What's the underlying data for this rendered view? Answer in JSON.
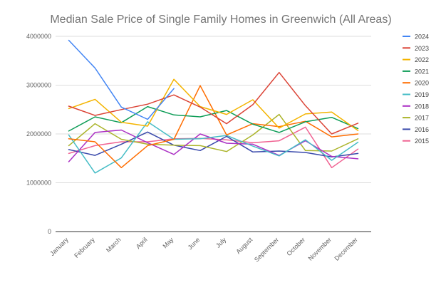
{
  "chart_data": {
    "type": "line",
    "title": "Median Sale Price of Single Family Homes in Greenwich (All Areas)",
    "xlabel": "",
    "ylabel": "",
    "ylim": [
      0,
      4000000
    ],
    "yticks": [
      "0",
      "1000000",
      "2000000",
      "3000000",
      "4000000"
    ],
    "grid": true,
    "legend_position": "right",
    "categories": [
      "January",
      "February",
      "March",
      "April",
      "May",
      "June",
      "July",
      "August",
      "September",
      "October",
      "November",
      "December"
    ],
    "series": [
      {
        "name": "2024",
        "color": "#4285F4",
        "values": [
          3920000,
          3350000,
          2550000,
          2300000,
          2930000,
          null,
          null,
          null,
          null,
          null,
          null,
          null
        ]
      },
      {
        "name": "2023",
        "color": "#DB4437",
        "values": [
          2570000,
          2380000,
          2500000,
          2610000,
          2800000,
          2550000,
          2210000,
          2600000,
          3260000,
          2580000,
          2000000,
          2220000
        ]
      },
      {
        "name": "2022",
        "color": "#F4B400",
        "values": [
          2520000,
          2710000,
          2240000,
          2160000,
          3120000,
          2560000,
          2400000,
          2700000,
          2120000,
          2410000,
          2450000,
          2070000
        ]
      },
      {
        "name": "2021",
        "color": "#0F9D58",
        "values": [
          2060000,
          2350000,
          2230000,
          2560000,
          2390000,
          2350000,
          2480000,
          2200000,
          2030000,
          2250000,
          2340000,
          2110000
        ]
      },
      {
        "name": "2020",
        "color": "#FF6D01",
        "values": [
          1900000,
          1840000,
          1310000,
          1760000,
          1890000,
          2990000,
          1980000,
          2210000,
          2150000,
          2260000,
          1940000,
          2000000
        ]
      },
      {
        "name": "2019",
        "color": "#46BDC6",
        "values": [
          1980000,
          1200000,
          1510000,
          2250000,
          1890000,
          1900000,
          1970000,
          1750000,
          1550000,
          1880000,
          1460000,
          1830000
        ]
      },
      {
        "name": "2018",
        "color": "#AB30C4",
        "values": [
          1430000,
          2030000,
          2080000,
          1820000,
          1580000,
          2000000,
          1810000,
          1790000,
          1560000,
          1860000,
          1540000,
          1490000
        ]
      },
      {
        "name": "2017",
        "color": "#ABB42A",
        "values": [
          1760000,
          2210000,
          1890000,
          1790000,
          1770000,
          1760000,
          1640000,
          1980000,
          2400000,
          1660000,
          1650000,
          1900000
        ]
      },
      {
        "name": "2016",
        "color": "#3949AB",
        "values": [
          1680000,
          1560000,
          1790000,
          2040000,
          1770000,
          1660000,
          1950000,
          1630000,
          1650000,
          1620000,
          1530000,
          1600000
        ]
      },
      {
        "name": "2015",
        "color": "#F06292",
        "values": [
          1600000,
          1760000,
          1840000,
          1840000,
          1900000,
          1910000,
          1880000,
          1820000,
          1860000,
          2140000,
          1310000,
          1690000
        ]
      }
    ]
  }
}
